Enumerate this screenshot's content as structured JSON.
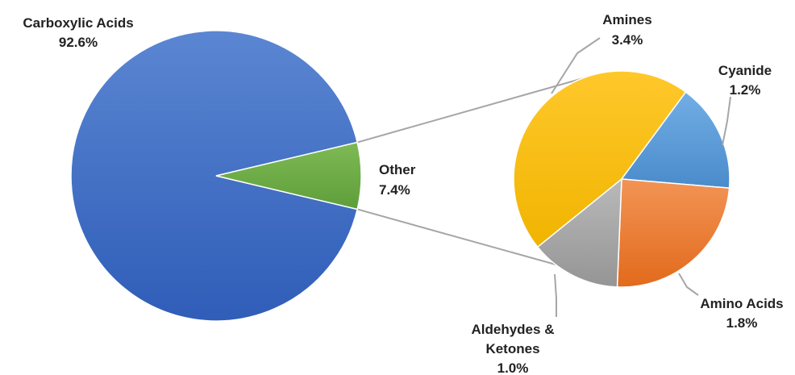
{
  "chart_data": {
    "type": "pie",
    "subtype": "pie-of-pie",
    "main": {
      "slices": [
        {
          "label": "Carboxylic Acids",
          "value": 92.6,
          "value_label": "92.6%",
          "color": "#4472C4"
        },
        {
          "label": "Other",
          "value": 7.4,
          "value_label": "7.4%",
          "color": "#70AD47"
        }
      ]
    },
    "secondary": {
      "slices": [
        {
          "label": "Amines",
          "value": 3.4,
          "value_label": "3.4%",
          "color": "#FFC000"
        },
        {
          "label": "Cyanide",
          "value": 1.2,
          "value_label": "1.2%",
          "color": "#5B9BD5"
        },
        {
          "label": "Amino Acids",
          "value": 1.8,
          "value_label": "1.8%",
          "color": "#ED7D31"
        },
        {
          "label": "Aldehydes &",
          "label_line2": "Ketones",
          "value": 1.0,
          "value_label": "1.0%",
          "color": "#A5A5A5"
        }
      ]
    },
    "legend": "none",
    "grid": false
  }
}
